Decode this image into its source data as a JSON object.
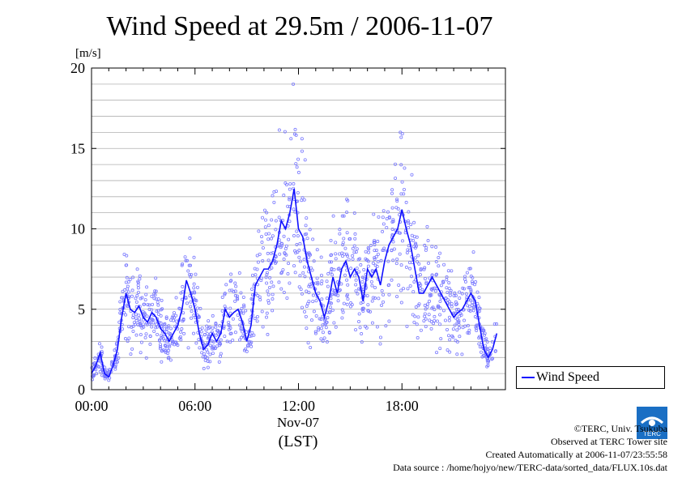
{
  "title": "Wind Speed at 29.5m / 2006-11-07",
  "legend": {
    "label": "Wind Speed"
  },
  "credits": {
    "line1": "©TERC, Univ. Tsukuba",
    "line2": "Observed at TERC Tower site",
    "line3": "Created Automatically at 2006-11-07/23:55:58",
    "line4": "Data source : /home/hojyo/new/TERC-data/sorted_data/FLUX.10s.dat"
  },
  "logo_text": "TERC",
  "colors": {
    "line": "#1010ff",
    "scatter": "#7b7bff",
    "grid": "#b0b0b0"
  },
  "chart_data": {
    "type": "line",
    "title": "Wind Speed at 29.5m / 2006-11-07",
    "ylabel": "[m/s]",
    "xlabel": "(LST)",
    "xlabel_date": "Nov-07",
    "xlim": [
      0,
      24
    ],
    "ylim": [
      0,
      20
    ],
    "x_ticks": [
      0,
      6,
      12,
      18
    ],
    "x_tick_labels": [
      "00:00",
      "06:00",
      "12:00",
      "18:00"
    ],
    "y_ticks": [
      0,
      5,
      10,
      15,
      20
    ],
    "grid": "horizontal lines every 1 m/s",
    "legend_position": "right, outside plot, bottom",
    "series": [
      {
        "name": "Wind Speed",
        "style": "line (10-min mean) over 10-s scatter points",
        "x": [
          0.0,
          0.25,
          0.5,
          0.75,
          1.0,
          1.25,
          1.5,
          1.75,
          2.0,
          2.25,
          2.5,
          2.75,
          3.0,
          3.25,
          3.5,
          3.75,
          4.0,
          4.25,
          4.5,
          4.75,
          5.0,
          5.25,
          5.5,
          5.75,
          6.0,
          6.25,
          6.5,
          6.75,
          7.0,
          7.25,
          7.5,
          7.75,
          8.0,
          8.25,
          8.5,
          8.75,
          9.0,
          9.25,
          9.5,
          9.75,
          10.0,
          10.25,
          10.5,
          10.75,
          11.0,
          11.25,
          11.5,
          11.75,
          12.0,
          12.25,
          12.5,
          12.75,
          13.0,
          13.25,
          13.5,
          13.75,
          14.0,
          14.25,
          14.5,
          14.75,
          15.0,
          15.25,
          15.5,
          15.75,
          16.0,
          16.25,
          16.5,
          16.75,
          17.0,
          17.25,
          17.5,
          17.75,
          18.0,
          18.25,
          18.5,
          18.75,
          19.0,
          19.25,
          19.5,
          19.75,
          20.0,
          20.25,
          20.5,
          20.75,
          21.0,
          21.25,
          21.5,
          21.75,
          22.0,
          22.25,
          22.5,
          22.75,
          23.0,
          23.25,
          23.5
        ],
        "y": [
          1.0,
          1.5,
          2.3,
          1.0,
          0.8,
          1.5,
          2.5,
          4.5,
          6.0,
          5.0,
          4.8,
          5.2,
          4.5,
          4.2,
          4.8,
          4.5,
          3.8,
          3.5,
          3.0,
          3.5,
          4.0,
          5.0,
          6.8,
          6.0,
          5.0,
          3.5,
          2.5,
          2.8,
          3.5,
          3.0,
          3.5,
          5.0,
          4.5,
          4.8,
          5.0,
          4.2,
          3.0,
          4.0,
          6.5,
          7.0,
          7.5,
          7.5,
          8.0,
          9.0,
          10.5,
          10.0,
          11.0,
          12.5,
          10.0,
          9.5,
          8.0,
          7.0,
          6.0,
          5.5,
          4.5,
          5.5,
          7.0,
          6.0,
          7.5,
          8.0,
          7.0,
          7.5,
          7.0,
          5.5,
          7.5,
          7.0,
          7.5,
          6.5,
          8.0,
          9.0,
          9.5,
          10.0,
          11.2,
          10.0,
          9.0,
          7.5,
          6.0,
          6.0,
          6.5,
          7.0,
          6.5,
          6.0,
          5.5,
          5.0,
          4.5,
          4.8,
          5.0,
          5.5,
          6.0,
          5.5,
          4.0,
          2.5,
          2.0,
          2.5,
          3.5
        ]
      }
    ]
  }
}
